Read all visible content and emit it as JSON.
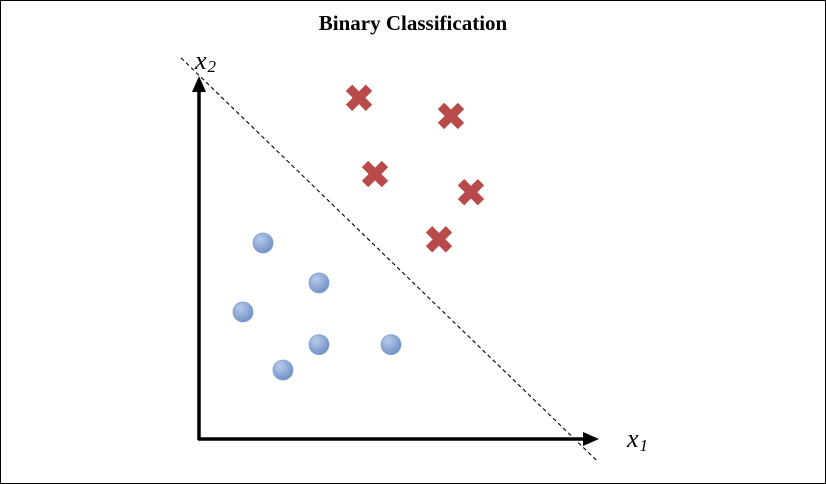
{
  "chart_data": {
    "type": "scatter",
    "title": "Binary Classification",
    "xlabel": "x1",
    "ylabel": "x2",
    "xlabel_main": "x",
    "xlabel_sub": "1",
    "ylabel_main": "x",
    "ylabel_sub": "2",
    "xlim": [
      0,
      10
    ],
    "ylim": [
      0,
      10
    ],
    "grid": false,
    "ticks": false,
    "series": [
      {
        "marker": "circle",
        "color": "#7f9fd0",
        "points": [
          {
            "x": 1.6,
            "y": 5.4
          },
          {
            "x": 1.1,
            "y": 3.5
          },
          {
            "x": 3.0,
            "y": 4.3
          },
          {
            "x": 2.1,
            "y": 1.9
          },
          {
            "x": 3.0,
            "y": 2.6
          },
          {
            "x": 4.8,
            "y": 2.6
          }
        ]
      },
      {
        "marker": "cross",
        "color": "#b94a4a",
        "points": [
          {
            "x": 4.0,
            "y": 9.4
          },
          {
            "x": 6.3,
            "y": 8.9
          },
          {
            "x": 4.4,
            "y": 7.3
          },
          {
            "x": 6.8,
            "y": 6.8
          },
          {
            "x": 6.0,
            "y": 5.5
          }
        ]
      }
    ],
    "decision_boundary": {
      "style": "dashed",
      "color": "#000000",
      "from": {
        "x": -0.45,
        "y": 10.5
      },
      "to": {
        "x": 9.95,
        "y": -0.6
      }
    },
    "axis_color": "#000000"
  }
}
